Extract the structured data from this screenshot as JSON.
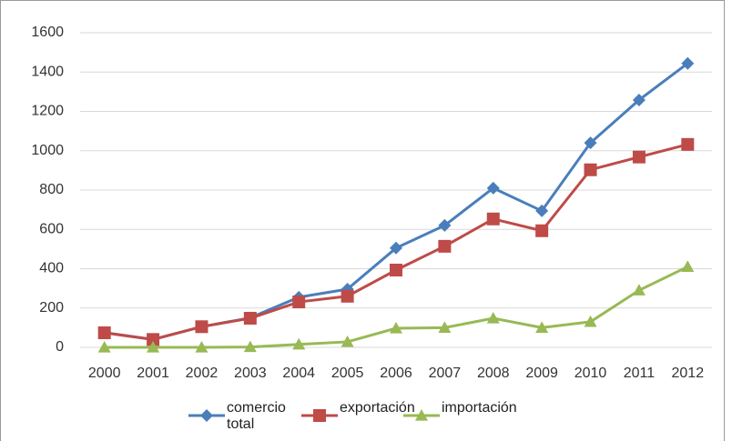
{
  "chart_data": {
    "type": "line",
    "categories": [
      "2000",
      "2001",
      "2002",
      "2003",
      "2004",
      "2005",
      "2006",
      "2007",
      "2008",
      "2009",
      "2010",
      "2011",
      "2012"
    ],
    "series": [
      {
        "name": "comercio total",
        "color": "#4a7ebb",
        "marker": "diamond",
        "values": [
          75,
          40,
          105,
          150,
          255,
          296,
          505,
          620,
          810,
          694,
          1040,
          1258,
          1444
        ]
      },
      {
        "name": "exportación",
        "color": "#be4b48",
        "marker": "square",
        "values": [
          74,
          40,
          105,
          148,
          231,
          260,
          393,
          514,
          653,
          593,
          903,
          968,
          1032
        ]
      },
      {
        "name": "importación",
        "color": "#98b954",
        "marker": "triangle",
        "values": [
          0,
          0,
          0,
          2,
          15,
          28,
          97,
          100,
          148,
          100,
          130,
          290,
          410
        ]
      }
    ],
    "ylim": [
      0,
      1600
    ],
    "yticks": [
      0,
      200,
      400,
      600,
      800,
      1000,
      1200,
      1400,
      1600
    ],
    "grid": true,
    "legend": "bottom"
  }
}
